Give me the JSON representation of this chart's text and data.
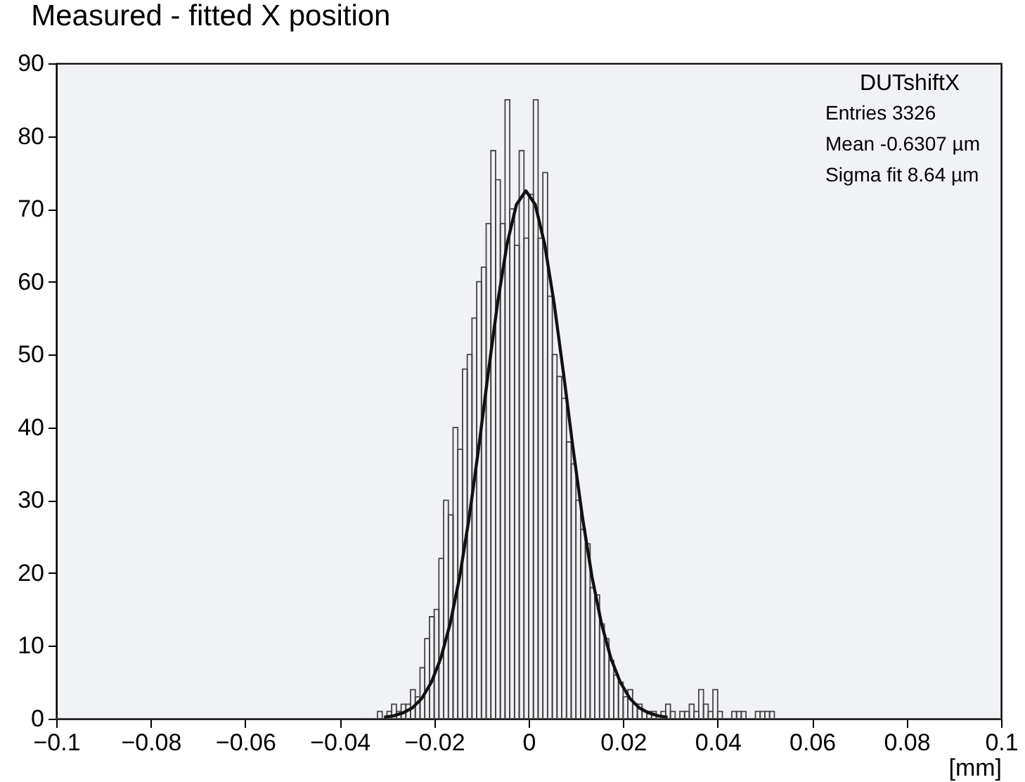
{
  "chart_data": {
    "type": "histogram",
    "title": "Measured - fitted X position",
    "xlabel": "[mm]",
    "bins": [
      -0.1,
      -0.036,
      -0.035,
      -0.034,
      -0.033,
      -0.032,
      -0.031,
      -0.03,
      -0.029,
      -0.028,
      -0.027,
      -0.026,
      -0.025,
      -0.024,
      -0.023,
      -0.022,
      -0.021,
      -0.02,
      -0.019,
      -0.018,
      -0.017,
      -0.016,
      -0.015,
      -0.014,
      -0.013,
      -0.012,
      -0.011,
      -0.01,
      -0.009,
      -0.008,
      -0.007,
      -0.006,
      -0.005,
      -0.004,
      -0.003,
      -0.002,
      -0.001,
      0.0,
      0.001,
      0.002,
      0.003,
      0.004,
      0.005,
      0.006,
      0.007,
      0.008,
      0.009,
      0.01,
      0.011,
      0.012,
      0.013,
      0.014,
      0.015,
      0.016,
      0.017,
      0.018,
      0.019,
      0.02,
      0.021,
      0.022,
      0.023,
      0.024,
      0.025,
      0.026,
      0.027,
      0.028,
      0.029,
      0.03,
      0.031,
      0.032,
      0.033,
      0.034,
      0.035,
      0.036,
      0.037,
      0.038,
      0.039,
      0.04,
      0.041,
      0.042,
      0.043,
      0.044,
      0.045,
      0.046,
      0.047,
      0.048,
      0.049,
      0.05,
      0.051,
      0.052,
      0.053,
      0.054,
      0.055,
      0.056,
      0.1
    ],
    "values": [
      0,
      0,
      0,
      0,
      0,
      1,
      0,
      1,
      2,
      1,
      2,
      2,
      4,
      3,
      7,
      11,
      14,
      15,
      22,
      30,
      28,
      40,
      37,
      48,
      50,
      55,
      60,
      62,
      68,
      78,
      74,
      68,
      85,
      70,
      65,
      78,
      66,
      72,
      85,
      66,
      75,
      58,
      50,
      47,
      44,
      38,
      35,
      30,
      26,
      24,
      18,
      17,
      13,
      11,
      8,
      6,
      5,
      3,
      4,
      2,
      2,
      1,
      1,
      1,
      0,
      1,
      2,
      1,
      0,
      1,
      1,
      2,
      1,
      4,
      2,
      1,
      4,
      1,
      0,
      0,
      1,
      1,
      1,
      0,
      0,
      1,
      1,
      1,
      1,
      0,
      0,
      0,
      0,
      0
    ],
    "color": "#444444",
    "series": [
      {
        "type": "line",
        "color": "#111111",
        "x": [
          -0.0306,
          -0.0286,
          -0.0266,
          -0.0246,
          -0.0226,
          -0.0206,
          -0.0186,
          -0.0166,
          -0.0146,
          -0.0126,
          -0.0106,
          -0.0086,
          -0.0066,
          -0.0046,
          -0.0026,
          -0.0006,
          0.0014,
          0.0034,
          0.0054,
          0.0074,
          0.0094,
          0.0114,
          0.0134,
          0.0154,
          0.0174,
          0.0194,
          0.0214,
          0.0234,
          0.0254,
          0.0274,
          0.0294
        ],
        "values": [
          0.2,
          0.4,
          0.8,
          1.5,
          2.8,
          5.0,
          8.3,
          13.1,
          19.5,
          27.6,
          37.1,
          47.3,
          57.0,
          65.1,
          70.6,
          72.5,
          70.6,
          65.1,
          57.0,
          47.3,
          37.1,
          27.6,
          19.5,
          13.1,
          8.3,
          5.0,
          2.8,
          1.5,
          0.8,
          0.4,
          0.2
        ]
      }
    ],
    "xlim": [
      -0.1,
      0.1
    ],
    "ylim": [
      0,
      90
    ],
    "xticks": [
      -0.1,
      -0.08,
      -0.06,
      -0.04,
      -0.02,
      0,
      0.02,
      0.04,
      0.06,
      0.08,
      0.1
    ],
    "yticks": [
      0,
      10,
      20,
      30,
      40,
      50,
      60,
      70,
      80,
      90
    ],
    "grid": false,
    "annotations": [
      "DUTshiftX",
      "Entries 3326",
      "Mean -0.6307 µm",
      "Sigma fit 8.64 µm"
    ]
  }
}
